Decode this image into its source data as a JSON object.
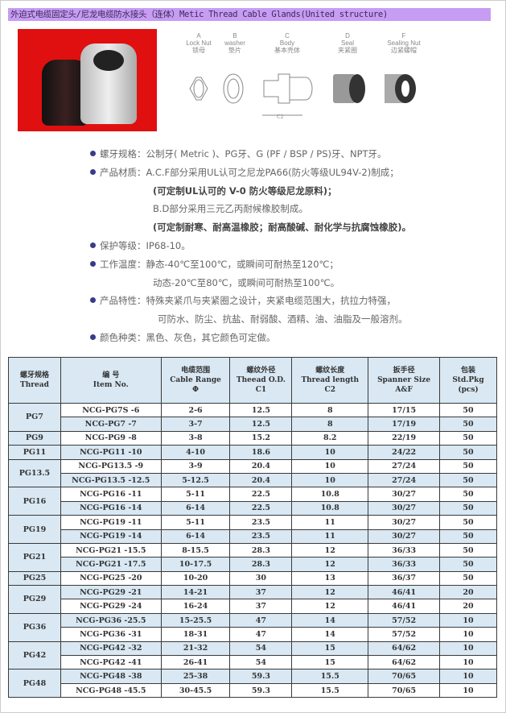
{
  "title": "外迫式电缆固定头/尼龙电缆防水接头（连体）Metic Thread Cable Glands(United structure)",
  "parts": [
    {
      "letter": "A",
      "en": "Lock Nut",
      "cn": "锁母"
    },
    {
      "letter": "B",
      "en": "washer",
      "cn": "垫片"
    },
    {
      "letter": "C",
      "en": "Body",
      "cn": "基本壳体"
    },
    {
      "letter": "D",
      "en": "Seal",
      "cn": "夹紧圈"
    },
    {
      "letter": "F",
      "en": "Sealing Nut",
      "cn": "边紧螺帽"
    }
  ],
  "dimension_label": "C2",
  "specs": [
    {
      "text": "螺牙规格：公制牙( Metric )、PG牙、G (PF / BSP / PS)牙、NPT牙。",
      "bullet": true
    },
    {
      "text": "产品材质：A.C.F部分采用UL认可之尼龙PA66(防火等级UL94V-2)制成；",
      "bullet": true
    },
    {
      "text": "(可定制UL认可的 V-0 防火等级尼龙原料)；",
      "bullet": false,
      "bold": true
    },
    {
      "text": "B.D部分采用三元乙丙耐候橡胶制成。",
      "bullet": false
    },
    {
      "text": "(可定制耐寒、耐高温橡胶；耐高酸碱、耐化学与抗腐蚀橡胶)。",
      "bullet": false,
      "bold": true
    },
    {
      "text": "保护等级：IP68-10。",
      "bullet": true
    },
    {
      "text": "工作温度：静态-40℃至100℃，或瞬间可耐热至120℃；",
      "bullet": true
    },
    {
      "text": "动态-20℃至80℃，或瞬间可耐热至100℃。",
      "bullet": false
    },
    {
      "text": "产品特性：特殊夹紧爪与夹紧圈之设计，夹紧电缆范围大，抗拉力特强，",
      "bullet": true
    },
    {
      "text": "可防水、防尘、抗盐、耐弱酸、酒精、油、油脂及一般溶剂。",
      "bullet": false,
      "ind2": true
    },
    {
      "text": "颜色种类：黑色、灰色，其它颜色可定做。",
      "bullet": true
    }
  ],
  "table": {
    "headers": [
      [
        "螺牙规格",
        "Thread"
      ],
      [
        "编 号",
        "Item No."
      ],
      [
        "电缆范围",
        "Cable Range",
        "Φ"
      ],
      [
        "螺纹外径",
        "Theead O.D.",
        "C1"
      ],
      [
        "螺纹长度",
        "Thread length",
        "C2"
      ],
      [
        "扳手径",
        "Spanner Size",
        "A&F"
      ],
      [
        "包装",
        "Std.Pkg",
        "(pcs)"
      ]
    ],
    "groups": [
      {
        "thread": "PG7",
        "rows": [
          [
            "NCG-PG7S -6",
            "2-6",
            "12.5",
            "8",
            "17/15",
            "50"
          ],
          [
            "NCG-PG7 -7",
            "3-7",
            "12.5",
            "8",
            "17/19",
            "50"
          ]
        ]
      },
      {
        "thread": "PG9",
        "rows": [
          [
            "NCG-PG9 -8",
            "3-8",
            "15.2",
            "8.2",
            "22/19",
            "50"
          ]
        ]
      },
      {
        "thread": "PG11",
        "rows": [
          [
            "NCG-PG11 -10",
            "4-10",
            "18.6",
            "10",
            "24/22",
            "50"
          ]
        ]
      },
      {
        "thread": "PG13.5",
        "rows": [
          [
            "NCG-PG13.5 -9",
            "3-9",
            "20.4",
            "10",
            "27/24",
            "50"
          ],
          [
            "NCG-PG13.5 -12.5",
            "5-12.5",
            "20.4",
            "10",
            "27/24",
            "50"
          ]
        ]
      },
      {
        "thread": "PG16",
        "rows": [
          [
            "NCG-PG16 -11",
            "5-11",
            "22.5",
            "10.8",
            "30/27",
            "50"
          ],
          [
            "NCG-PG16 -14",
            "6-14",
            "22.5",
            "10.8",
            "30/27",
            "50"
          ]
        ]
      },
      {
        "thread": "PG19",
        "rows": [
          [
            "NCG-PG19 -11",
            "5-11",
            "23.5",
            "11",
            "30/27",
            "50"
          ],
          [
            "NCG-PG19 -14",
            "6-14",
            "23.5",
            "11",
            "30/27",
            "50"
          ]
        ]
      },
      {
        "thread": "PG21",
        "rows": [
          [
            "NCG-PG21 -15.5",
            "8-15.5",
            "28.3",
            "12",
            "36/33",
            "50"
          ],
          [
            "NCG-PG21 -17.5",
            "10-17.5",
            "28.3",
            "12",
            "36/33",
            "50"
          ]
        ]
      },
      {
        "thread": "PG25",
        "rows": [
          [
            "NCG-PG25 -20",
            "10-20",
            "30",
            "13",
            "36/37",
            "50"
          ]
        ]
      },
      {
        "thread": "PG29",
        "rows": [
          [
            "NCG-PG29 -21",
            "14-21",
            "37",
            "12",
            "46/41",
            "20"
          ],
          [
            "NCG-PG29 -24",
            "16-24",
            "37",
            "12",
            "46/41",
            "20"
          ]
        ]
      },
      {
        "thread": "PG36",
        "rows": [
          [
            "NCG-PG36 -25.5",
            "15-25.5",
            "47",
            "14",
            "57/52",
            "10"
          ],
          [
            "NCG-PG36 -31",
            "18-31",
            "47",
            "14",
            "57/52",
            "10"
          ]
        ]
      },
      {
        "thread": "PG42",
        "rows": [
          [
            "NCG-PG42 -32",
            "21-32",
            "54",
            "15",
            "64/62",
            "10"
          ],
          [
            "NCG-PG42 -41",
            "26-41",
            "54",
            "15",
            "64/62",
            "10"
          ]
        ]
      },
      {
        "thread": "PG48",
        "rows": [
          [
            "NCG-PG48 -38",
            "25-38",
            "59.3",
            "15.5",
            "70/65",
            "10"
          ],
          [
            "NCG-PG48 -45.5",
            "30-45.5",
            "59.3",
            "15.5",
            "70/65",
            "10"
          ]
        ]
      }
    ]
  },
  "colors": {
    "title_bar": "#c79cf3",
    "table_blue": "#d9e8f3",
    "photo_bg": "#e01010"
  }
}
